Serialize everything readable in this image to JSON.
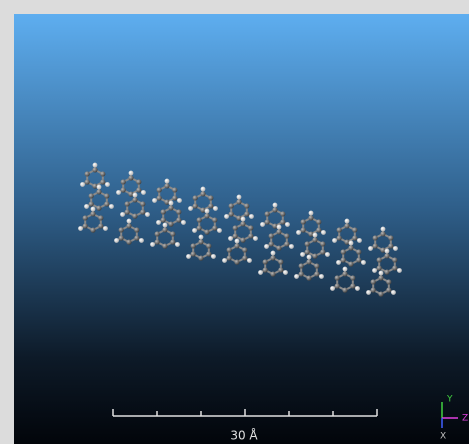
{
  "viewer": {
    "scale_bar": {
      "label": "30 Å"
    },
    "axes": {
      "y": "Y",
      "z": "Z",
      "x": "X"
    }
  }
}
